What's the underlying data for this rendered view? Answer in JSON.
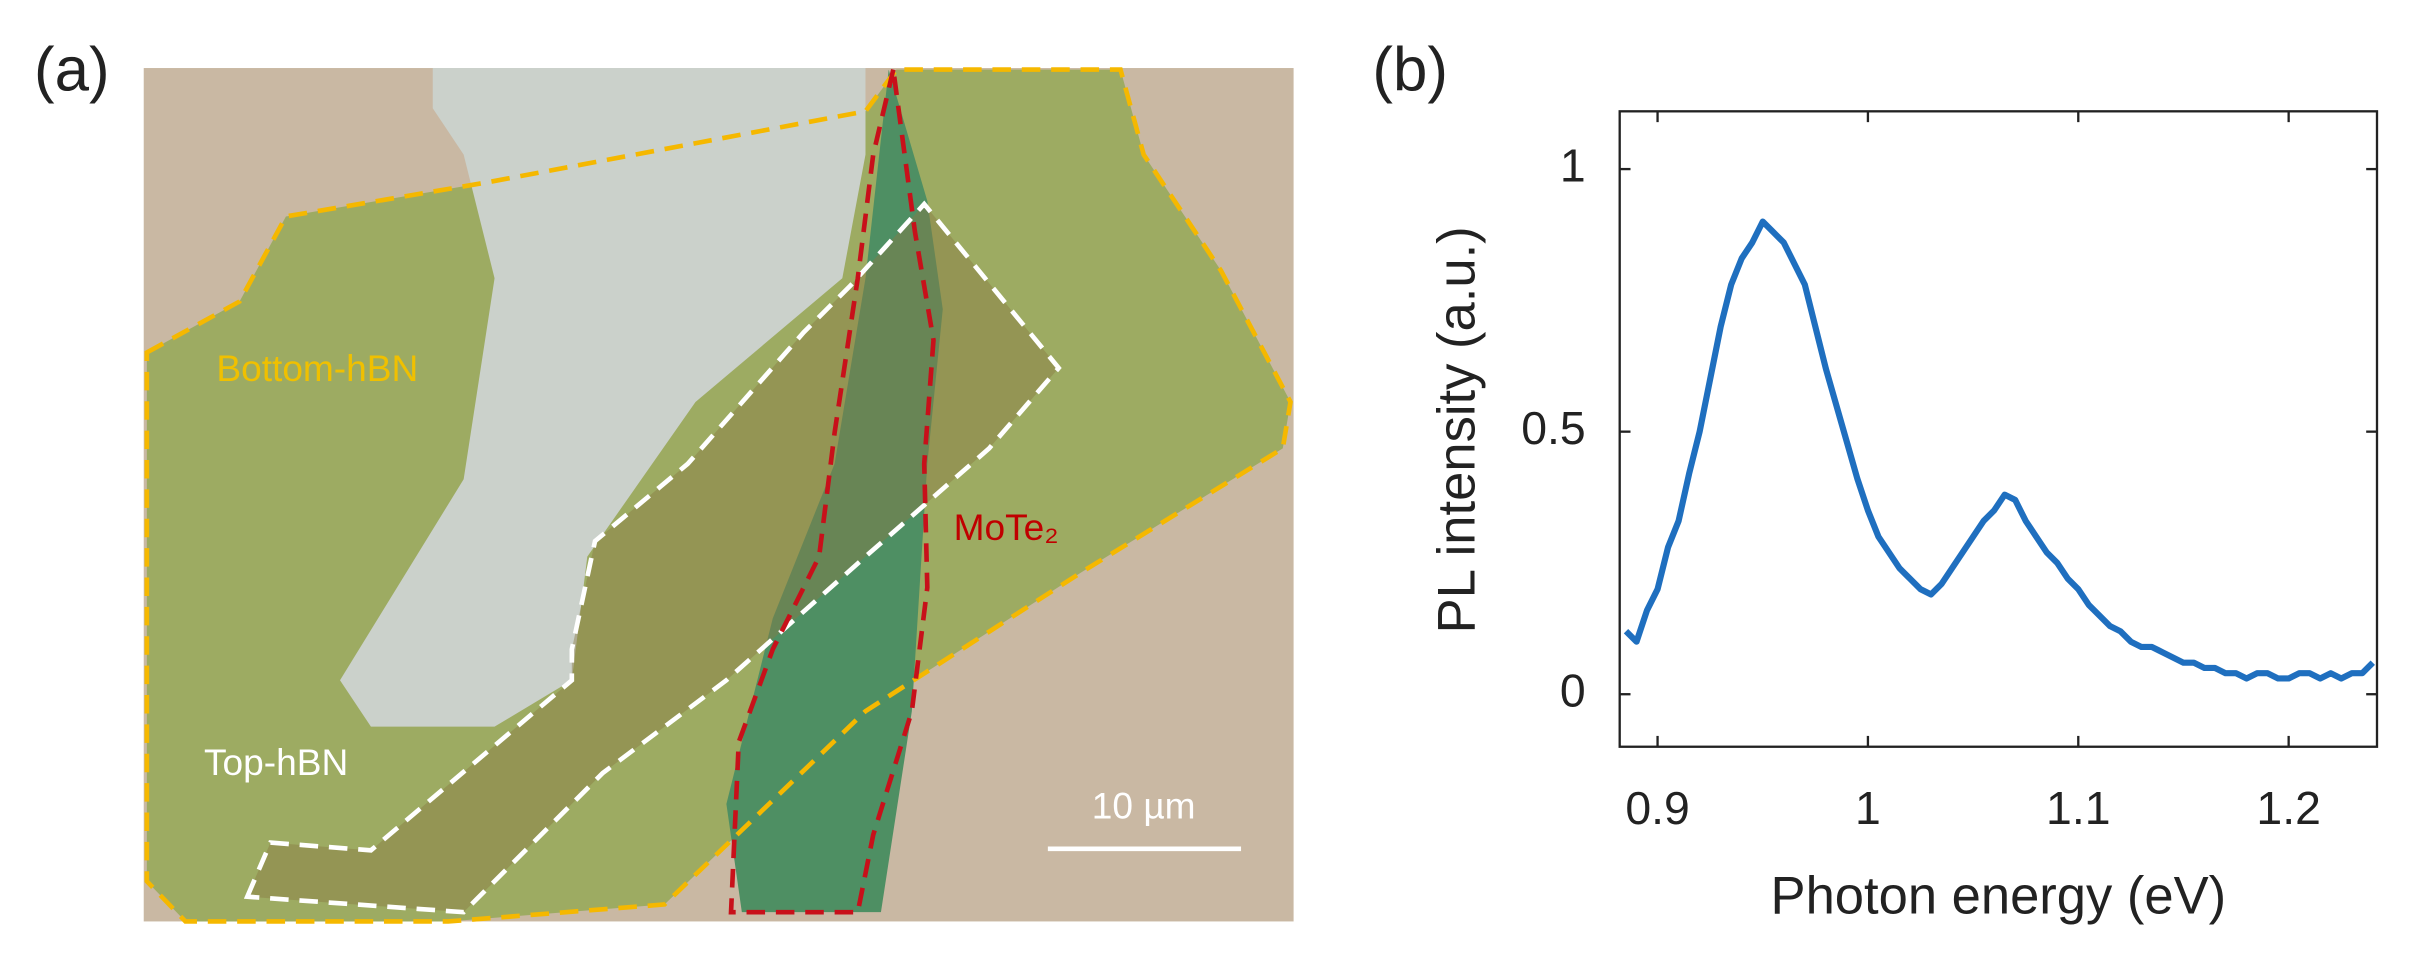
{
  "panels": {
    "a": "(a)",
    "b": "(b)"
  },
  "micrograph": {
    "labels": {
      "bottom_hbn": "Bottom-hBN",
      "top_hbn": "Top-hBN",
      "mote2": "MoTe₂"
    },
    "scale_bar": "10 µm"
  },
  "chart_data": {
    "type": "line",
    "xlabel": "Photon energy (eV)",
    "ylabel": "PL intensity (a.u.)",
    "xlim": [
      0.882,
      1.242
    ],
    "ylim": [
      -0.1,
      1.11
    ],
    "xticks": [
      0.9,
      1,
      1.1,
      1.2
    ],
    "yticks": [
      0,
      0.5,
      1
    ],
    "x": [
      0.885,
      0.89,
      0.895,
      0.9,
      0.905,
      0.91,
      0.915,
      0.92,
      0.925,
      0.93,
      0.935,
      0.94,
      0.945,
      0.95,
      0.955,
      0.96,
      0.965,
      0.97,
      0.975,
      0.98,
      0.985,
      0.99,
      0.995,
      1.0,
      1.005,
      1.01,
      1.015,
      1.02,
      1.025,
      1.03,
      1.035,
      1.04,
      1.045,
      1.05,
      1.055,
      1.06,
      1.065,
      1.07,
      1.075,
      1.08,
      1.085,
      1.09,
      1.095,
      1.1,
      1.105,
      1.11,
      1.115,
      1.12,
      1.125,
      1.13,
      1.135,
      1.14,
      1.145,
      1.15,
      1.155,
      1.16,
      1.165,
      1.17,
      1.175,
      1.18,
      1.185,
      1.19,
      1.195,
      1.2,
      1.205,
      1.21,
      1.215,
      1.22,
      1.225,
      1.23,
      1.235,
      1.24
    ],
    "series": [
      {
        "color": "#1f6fbf",
        "values": [
          0.12,
          0.1,
          0.16,
          0.2,
          0.28,
          0.33,
          0.42,
          0.5,
          0.6,
          0.7,
          0.78,
          0.83,
          0.86,
          0.9,
          0.88,
          0.86,
          0.82,
          0.78,
          0.7,
          0.62,
          0.55,
          0.48,
          0.41,
          0.35,
          0.3,
          0.27,
          0.24,
          0.22,
          0.2,
          0.19,
          0.21,
          0.24,
          0.27,
          0.3,
          0.33,
          0.35,
          0.38,
          0.37,
          0.33,
          0.3,
          0.27,
          0.25,
          0.22,
          0.2,
          0.17,
          0.15,
          0.13,
          0.12,
          0.1,
          0.09,
          0.09,
          0.08,
          0.07,
          0.06,
          0.06,
          0.05,
          0.05,
          0.04,
          0.04,
          0.03,
          0.04,
          0.04,
          0.03,
          0.03,
          0.04,
          0.04,
          0.03,
          0.04,
          0.03,
          0.04,
          0.04,
          0.06
        ]
      }
    ]
  }
}
